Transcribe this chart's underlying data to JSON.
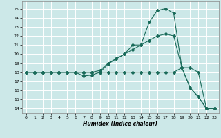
{
  "xlabel": "Humidex (Indice chaleur)",
  "bg_color": "#cce8e8",
  "grid_color": "#ffffff",
  "line_color": "#1a6b5a",
  "xlim": [
    -0.5,
    23.5
  ],
  "ylim": [
    13.5,
    25.8
  ],
  "yticks": [
    14,
    15,
    16,
    17,
    18,
    19,
    20,
    21,
    22,
    23,
    24,
    25
  ],
  "xticks": [
    0,
    1,
    2,
    3,
    4,
    5,
    6,
    7,
    8,
    9,
    10,
    11,
    12,
    13,
    14,
    15,
    16,
    17,
    18,
    19,
    20,
    21,
    22,
    23
  ],
  "curve1_x": [
    0,
    1,
    2,
    3,
    4,
    5,
    6,
    7,
    8,
    9,
    10,
    11,
    12,
    13,
    14,
    15,
    16,
    17,
    18,
    19,
    20,
    21,
    22,
    23
  ],
  "curve1_y": [
    18,
    18,
    18,
    18,
    18,
    18,
    18,
    17.6,
    17.7,
    18.0,
    18.9,
    19.5,
    20.0,
    21.0,
    21.0,
    23.5,
    24.8,
    25.0,
    24.5,
    18.5,
    16.3,
    15.3,
    14.0,
    14.0
  ],
  "curve2_x": [
    0,
    1,
    2,
    3,
    4,
    5,
    6,
    7,
    8,
    9,
    10,
    11,
    12,
    13,
    14,
    15,
    16,
    17,
    18,
    19,
    20,
    21,
    22,
    23
  ],
  "curve2_y": [
    18,
    18,
    18,
    18,
    18,
    18,
    18,
    18.0,
    18.0,
    18.2,
    19.0,
    19.5,
    20.0,
    20.5,
    21.0,
    21.5,
    22.0,
    22.2,
    22.0,
    18.5,
    16.3,
    15.3,
    14.0,
    14.0
  ],
  "curve3_x": [
    0,
    1,
    2,
    3,
    4,
    5,
    6,
    7,
    8,
    9,
    10,
    11,
    12,
    13,
    14,
    15,
    16,
    17,
    18,
    19,
    20,
    21,
    22,
    23
  ],
  "curve3_y": [
    18,
    18,
    18,
    18,
    18,
    18,
    18,
    18,
    18,
    18,
    18,
    18,
    18,
    18,
    18,
    18,
    18,
    18,
    18,
    18.5,
    18.5,
    18.0,
    14.0,
    14.0
  ]
}
